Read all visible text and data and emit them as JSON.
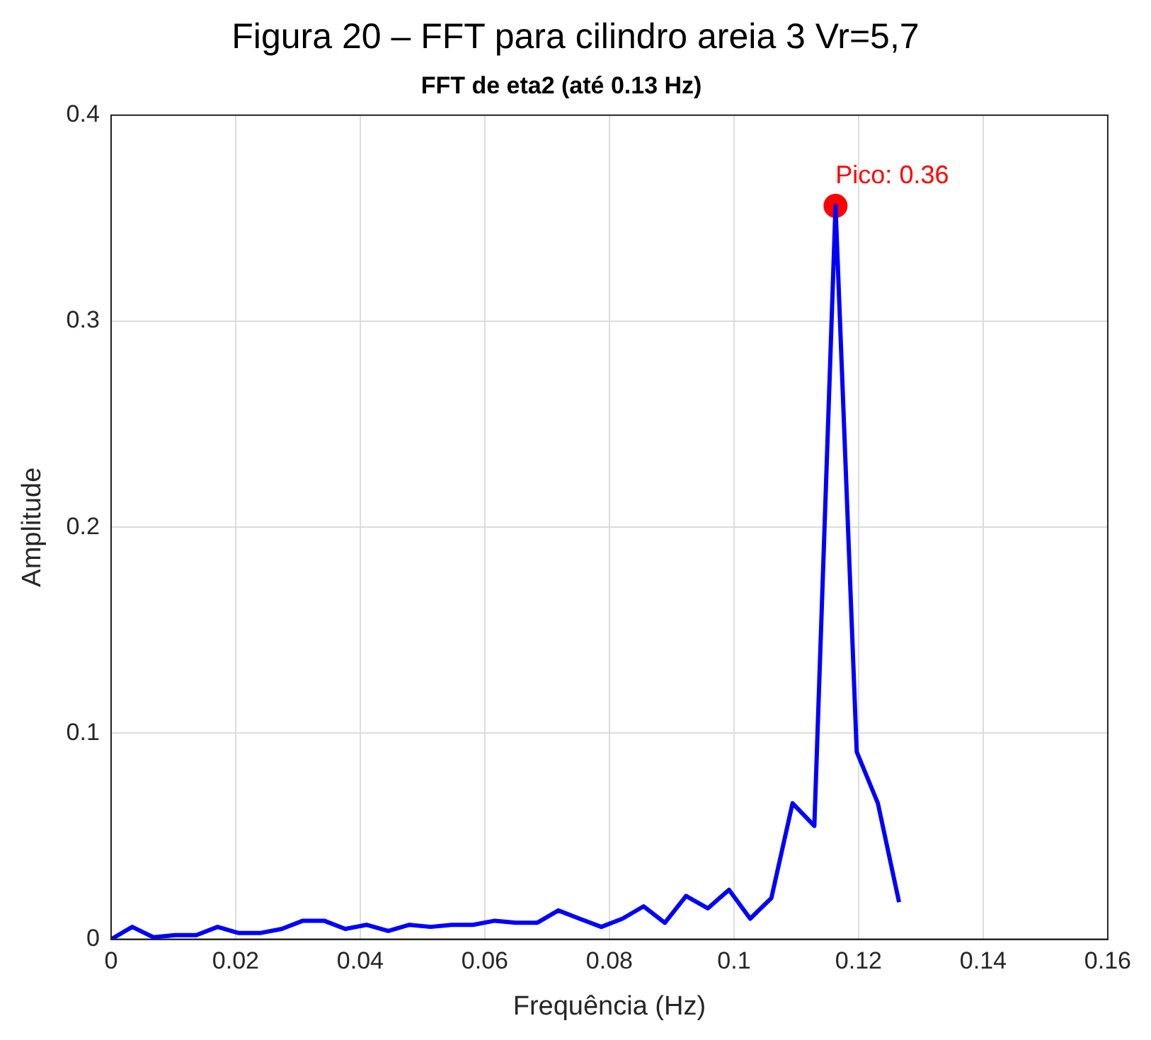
{
  "chart_data": {
    "type": "line",
    "title": "Figura 20 – FFT para cilindro areia 3 Vr=5,7",
    "subtitle": "FFT de eta2 (até 0.13 Hz)",
    "xlabel": "Frequência (Hz)",
    "ylabel": "Amplitude",
    "series": [
      {
        "color": "#0000ff",
        "x": [
          0,
          0.0034,
          0.0068,
          0.0103,
          0.0137,
          0.0171,
          0.0205,
          0.0239,
          0.0274,
          0.0308,
          0.0342,
          0.0376,
          0.041,
          0.0445,
          0.0479,
          0.0513,
          0.0547,
          0.0581,
          0.0616,
          0.065,
          0.0684,
          0.0718,
          0.0752,
          0.0787,
          0.0821,
          0.0855,
          0.0889,
          0.0923,
          0.0958,
          0.0992,
          0.1026,
          0.106,
          0.1094,
          0.1129,
          0.1163,
          0.1197,
          0.1231,
          0.1265
        ],
        "values": [
          0,
          0.006,
          0.001,
          0.002,
          0.002,
          0.006,
          0.003,
          0.003,
          0.005,
          0.009,
          0.009,
          0.005,
          0.007,
          0.004,
          0.007,
          0.006,
          0.007,
          0.007,
          0.009,
          0.008,
          0.008,
          0.014,
          0.01,
          0.006,
          0.01,
          0.016,
          0.008,
          0.021,
          0.015,
          0.024,
          0.01,
          0.02,
          0.066,
          0.055,
          0.356,
          0.091,
          0.066,
          0.018
        ]
      },
      {
        "type": "scatter",
        "color": "#ff0000",
        "marker": "circle",
        "x": [
          0.1163
        ],
        "values": [
          0.356
        ]
      }
    ],
    "annotations": [
      {
        "text": "Pico: 0.36",
        "x": 0.1163,
        "y": 0.356
      }
    ],
    "xlim": [
      0,
      0.16
    ],
    "xticks": [
      0,
      0.02,
      0.04,
      0.06,
      0.08,
      0.1,
      0.12,
      0.14,
      0.16
    ],
    "ylim": [
      0,
      0.4
    ],
    "yticks": [
      0,
      0.1,
      0.2,
      0.3,
      0.4
    ],
    "grid": true,
    "legend": false
  }
}
